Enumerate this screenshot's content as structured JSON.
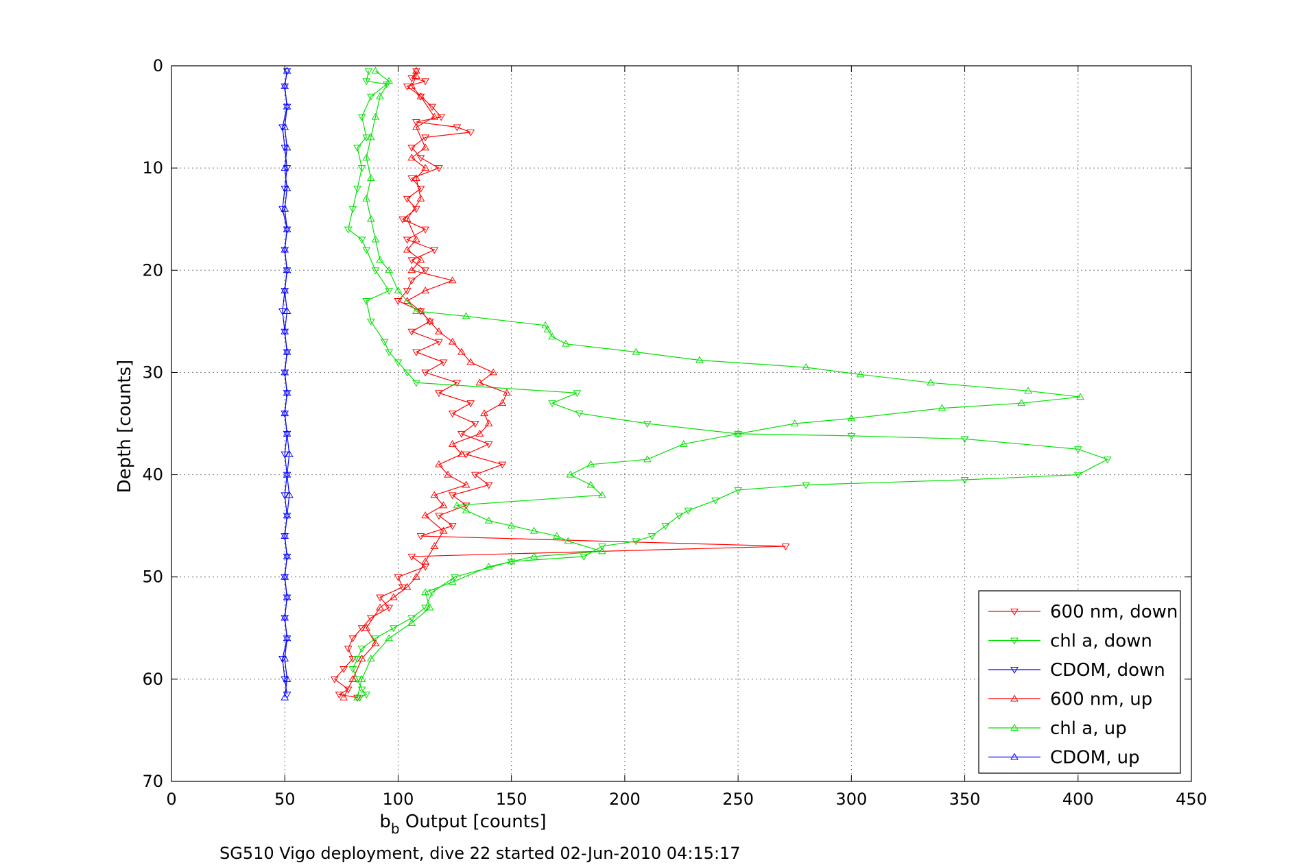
{
  "chart_data": {
    "type": "line",
    "title": "",
    "xlabel_main": "b",
    "xlabel_sub": "b",
    "xlabel_rest": " Output [counts]",
    "ylabel": "Depth [counts]",
    "caption": "SG510 Vigo deployment, dive 22 started 02-Jun-2010 04:15:17",
    "xlim": [
      0,
      450
    ],
    "ylim": [
      0,
      70
    ],
    "y_reversed": true,
    "grid": true,
    "legend_position": "bottom-right",
    "x_ticks": [
      "0",
      "50",
      "100",
      "150",
      "200",
      "250",
      "300",
      "350",
      "400",
      "450"
    ],
    "y_ticks": [
      "0",
      "10",
      "20",
      "30",
      "40",
      "50",
      "60",
      "70"
    ],
    "x_tick_values": [
      0,
      50,
      100,
      150,
      200,
      250,
      300,
      350,
      400,
      450
    ],
    "y_tick_values": [
      0,
      10,
      20,
      30,
      40,
      50,
      60,
      70
    ],
    "series": [
      {
        "name": "600 nm, down",
        "color": "#ff0000",
        "marker": "triangle-down",
        "points": [
          [
            108,
            0.5
          ],
          [
            106,
            1.2
          ],
          [
            112,
            1.5
          ],
          [
            104,
            2
          ],
          [
            110,
            3
          ],
          [
            115,
            4
          ],
          [
            119,
            5
          ],
          [
            108,
            5.5
          ],
          [
            126,
            6
          ],
          [
            132,
            6.5
          ],
          [
            112,
            7
          ],
          [
            106,
            8
          ],
          [
            110,
            9
          ],
          [
            118,
            10
          ],
          [
            106,
            11
          ],
          [
            110,
            12
          ],
          [
            104,
            13
          ],
          [
            108,
            14
          ],
          [
            102,
            15
          ],
          [
            112,
            16
          ],
          [
            104,
            17
          ],
          [
            116,
            18
          ],
          [
            106,
            19
          ],
          [
            112,
            20
          ],
          [
            106,
            21
          ],
          [
            104,
            22
          ],
          [
            100,
            23
          ],
          [
            110,
            24
          ],
          [
            114,
            25
          ],
          [
            106,
            26
          ],
          [
            118,
            27
          ],
          [
            108,
            28
          ],
          [
            120,
            29
          ],
          [
            112,
            30
          ],
          [
            126,
            31
          ],
          [
            118,
            32
          ],
          [
            132,
            33
          ],
          [
            124,
            34
          ],
          [
            134,
            35
          ],
          [
            128,
            36
          ],
          [
            140,
            37
          ],
          [
            130,
            38
          ],
          [
            146,
            39
          ],
          [
            134,
            40
          ],
          [
            140,
            41
          ],
          [
            124,
            42
          ],
          [
            130,
            43
          ],
          [
            118,
            44
          ],
          [
            124,
            45
          ],
          [
            110,
            46
          ],
          [
            271,
            47
          ],
          [
            106,
            48
          ],
          [
            112,
            49
          ],
          [
            100,
            50
          ],
          [
            102,
            51
          ],
          [
            92,
            52
          ],
          [
            96,
            53
          ],
          [
            88,
            54
          ],
          [
            84,
            55
          ],
          [
            80,
            56
          ],
          [
            78,
            57
          ],
          [
            80,
            58
          ],
          [
            76,
            59
          ],
          [
            72,
            60
          ],
          [
            78,
            61
          ],
          [
            74,
            61.5
          ],
          [
            82,
            61.8
          ]
        ]
      },
      {
        "name": "chl a, down",
        "color": "#00e000",
        "marker": "triangle-down",
        "points": [
          [
            87,
            0.5
          ],
          [
            86,
            1.5
          ],
          [
            95,
            1.8
          ],
          [
            88,
            3
          ],
          [
            84,
            5
          ],
          [
            86,
            7
          ],
          [
            82,
            8
          ],
          [
            84,
            10
          ],
          [
            82,
            12
          ],
          [
            80,
            14
          ],
          [
            78,
            16
          ],
          [
            84,
            17
          ],
          [
            86,
            18
          ],
          [
            90,
            20
          ],
          [
            96,
            22
          ],
          [
            86,
            23
          ],
          [
            88,
            25
          ],
          [
            94,
            27
          ],
          [
            96,
            28
          ],
          [
            100,
            29
          ],
          [
            104,
            30
          ],
          [
            108,
            31
          ],
          [
            179,
            32
          ],
          [
            168,
            33
          ],
          [
            180,
            34
          ],
          [
            210,
            35
          ],
          [
            250,
            36
          ],
          [
            300,
            36.2
          ],
          [
            350,
            36.5
          ],
          [
            400,
            37.5
          ],
          [
            413,
            38.5
          ],
          [
            400,
            40
          ],
          [
            350,
            40.5
          ],
          [
            280,
            41
          ],
          [
            250,
            41.5
          ],
          [
            240,
            42.5
          ],
          [
            228,
            43.5
          ],
          [
            224,
            44
          ],
          [
            218,
            45
          ],
          [
            212,
            46
          ],
          [
            205,
            46.5
          ],
          [
            190,
            47
          ],
          [
            182,
            48
          ],
          [
            150,
            48.5
          ],
          [
            125,
            50
          ],
          [
            115,
            51.5
          ],
          [
            112,
            53
          ],
          [
            106,
            54
          ],
          [
            98,
            55
          ],
          [
            90,
            56
          ],
          [
            84,
            57
          ],
          [
            82,
            58
          ],
          [
            80,
            59
          ],
          [
            82,
            60
          ],
          [
            84,
            61
          ],
          [
            86,
            61.5
          ],
          [
            83,
            61.8
          ]
        ]
      },
      {
        "name": "CDOM, down",
        "color": "#0000ff",
        "marker": "triangle-down",
        "points": [
          [
            51,
            0.5
          ],
          [
            50,
            2
          ],
          [
            51,
            4
          ],
          [
            49,
            6
          ],
          [
            50,
            8
          ],
          [
            51,
            10
          ],
          [
            50,
            12
          ],
          [
            49,
            14
          ],
          [
            51,
            16
          ],
          [
            50,
            18
          ],
          [
            51,
            20
          ],
          [
            50,
            22
          ],
          [
            49,
            24
          ],
          [
            50,
            26
          ],
          [
            51,
            28
          ],
          [
            50,
            30
          ],
          [
            51,
            32
          ],
          [
            50,
            34
          ],
          [
            51,
            36
          ],
          [
            50,
            38
          ],
          [
            51,
            40
          ],
          [
            50,
            42
          ],
          [
            51,
            44
          ],
          [
            50,
            46
          ],
          [
            51,
            48
          ],
          [
            50,
            50
          ],
          [
            51,
            52
          ],
          [
            50,
            54
          ],
          [
            51,
            56
          ],
          [
            49,
            58
          ],
          [
            50,
            60
          ],
          [
            51,
            61.5
          ]
        ]
      },
      {
        "name": "600 nm, up",
        "color": "#ff0000",
        "marker": "triangle-up",
        "points": [
          [
            76,
            61.8
          ],
          [
            80,
            60
          ],
          [
            84,
            58
          ],
          [
            90,
            56.5
          ],
          [
            86,
            55
          ],
          [
            92,
            53
          ],
          [
            98,
            52
          ],
          [
            104,
            51
          ],
          [
            108,
            50
          ],
          [
            112,
            48.5
          ],
          [
            116,
            47
          ],
          [
            120,
            45.5
          ],
          [
            112,
            44
          ],
          [
            120,
            43
          ],
          [
            116,
            42
          ],
          [
            130,
            41
          ],
          [
            122,
            40
          ],
          [
            118,
            39
          ],
          [
            128,
            38
          ],
          [
            124,
            37
          ],
          [
            136,
            36
          ],
          [
            140,
            35
          ],
          [
            138,
            34
          ],
          [
            146,
            33
          ],
          [
            148,
            32
          ],
          [
            136,
            31
          ],
          [
            142,
            30
          ],
          [
            132,
            29
          ],
          [
            128,
            28
          ],
          [
            124,
            27
          ],
          [
            118,
            26
          ],
          [
            114,
            25
          ],
          [
            110,
            24
          ],
          [
            104,
            23
          ],
          [
            112,
            22
          ],
          [
            124,
            21
          ],
          [
            106,
            20
          ],
          [
            110,
            19
          ],
          [
            104,
            18
          ],
          [
            108,
            17
          ],
          [
            104,
            15
          ],
          [
            110,
            13
          ],
          [
            108,
            11
          ],
          [
            112,
            10
          ],
          [
            106,
            9
          ],
          [
            112,
            8
          ],
          [
            108,
            6
          ],
          [
            116,
            5
          ],
          [
            110,
            3
          ],
          [
            106,
            2
          ],
          [
            108,
            1
          ],
          [
            108,
            0.5
          ]
        ]
      },
      {
        "name": "chl a, up",
        "color": "#00e000",
        "marker": "triangle-up",
        "points": [
          [
            82,
            61.8
          ],
          [
            84,
            60
          ],
          [
            88,
            58
          ],
          [
            96,
            56
          ],
          [
            106,
            54.5
          ],
          [
            114,
            53
          ],
          [
            112,
            51.5
          ],
          [
            124,
            50.5
          ],
          [
            140,
            49
          ],
          [
            150,
            48.5
          ],
          [
            160,
            48
          ],
          [
            190,
            47.5
          ],
          [
            175,
            46.5
          ],
          [
            170,
            46
          ],
          [
            160,
            45.5
          ],
          [
            150,
            45
          ],
          [
            140,
            44.5
          ],
          [
            130,
            43.5
          ],
          [
            126,
            43
          ],
          [
            190,
            42
          ],
          [
            185,
            41
          ],
          [
            176,
            40
          ],
          [
            185,
            39
          ],
          [
            210,
            38.5
          ],
          [
            226,
            37
          ],
          [
            250,
            36
          ],
          [
            275,
            35
          ],
          [
            300,
            34.5
          ],
          [
            340,
            33.5
          ],
          [
            375,
            33
          ],
          [
            401,
            32.4
          ],
          [
            378,
            31.8
          ],
          [
            335,
            31
          ],
          [
            304,
            30.2
          ],
          [
            280,
            29.5
          ],
          [
            233,
            28.8
          ],
          [
            205,
            28
          ],
          [
            174,
            27.2
          ],
          [
            168,
            26.5
          ],
          [
            166,
            25.8
          ],
          [
            165,
            25.4
          ],
          [
            130,
            24.5
          ],
          [
            108,
            24
          ],
          [
            100,
            22
          ],
          [
            96,
            20
          ],
          [
            92,
            19
          ],
          [
            90,
            17
          ],
          [
            88,
            15
          ],
          [
            86,
            13
          ],
          [
            88,
            11
          ],
          [
            86,
            9
          ],
          [
            88,
            7
          ],
          [
            90,
            5
          ],
          [
            92,
            3
          ],
          [
            96,
            1.5
          ],
          [
            90,
            0.5
          ]
        ]
      },
      {
        "name": "CDOM, up",
        "color": "#0000ff",
        "marker": "triangle-up",
        "points": [
          [
            50,
            61.8
          ],
          [
            51,
            60
          ],
          [
            50,
            58
          ],
          [
            51,
            56
          ],
          [
            50,
            54
          ],
          [
            51,
            52
          ],
          [
            50,
            50
          ],
          [
            51,
            48
          ],
          [
            50,
            46
          ],
          [
            51,
            44
          ],
          [
            52,
            42
          ],
          [
            51,
            40
          ],
          [
            52,
            38
          ],
          [
            51,
            36
          ],
          [
            50,
            34
          ],
          [
            51,
            32
          ],
          [
            50,
            30
          ],
          [
            51,
            28
          ],
          [
            50,
            26
          ],
          [
            51,
            24
          ],
          [
            50,
            22
          ],
          [
            51,
            20
          ],
          [
            50,
            18
          ],
          [
            51,
            16
          ],
          [
            50,
            14
          ],
          [
            51,
            12
          ],
          [
            50,
            10
          ],
          [
            51,
            8
          ],
          [
            50,
            6
          ],
          [
            51,
            4
          ],
          [
            50,
            2
          ],
          [
            51,
            0.5
          ]
        ]
      }
    ]
  }
}
